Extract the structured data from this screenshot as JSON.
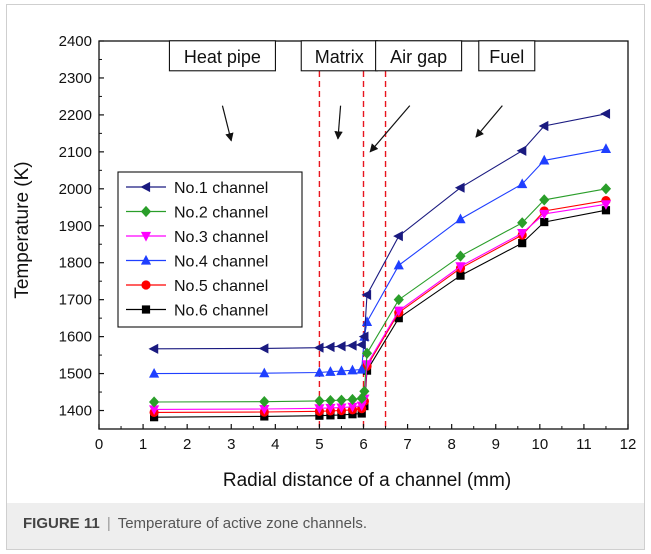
{
  "figure": {
    "caption_label": "FIGURE 11",
    "caption_separator": "|",
    "caption_text": "Temperature of active zone channels."
  },
  "chart_data": {
    "type": "line",
    "xlabel": "Radial distance of a channel (mm)",
    "ylabel": "Temperature (K)",
    "xlim": [
      0,
      12
    ],
    "ylim": [
      1350,
      2400
    ],
    "xticks": [
      0,
      1,
      2,
      3,
      4,
      5,
      6,
      7,
      8,
      9,
      10,
      11,
      12
    ],
    "yticks": [
      1400,
      1500,
      1600,
      1700,
      1800,
      1900,
      2000,
      2100,
      2200,
      2300,
      2400
    ],
    "grid": false,
    "legend_position": "left",
    "boundaries": [
      5.0,
      6.0,
      6.5
    ],
    "boundary_color": "#e8141e",
    "zone_annotations": [
      {
        "label": "Heat pipe",
        "box_x": 2.8,
        "box_y": 2360,
        "arrow_from": [
          2.8,
          2225
        ],
        "arrow_to": [
          3.0,
          2130
        ]
      },
      {
        "label": "Matrix",
        "box_x": 5.45,
        "box_y": 2360,
        "arrow_from": [
          5.48,
          2225
        ],
        "arrow_to": [
          5.42,
          2135
        ]
      },
      {
        "label": "Air gap",
        "box_x": 7.25,
        "box_y": 2360,
        "arrow_from": [
          7.05,
          2225
        ],
        "arrow_to": [
          6.15,
          2100
        ]
      },
      {
        "label": "Fuel",
        "box_x": 9.25,
        "box_y": 2360,
        "arrow_from": [
          9.15,
          2225
        ],
        "arrow_to": [
          8.55,
          2140
        ]
      }
    ],
    "x": [
      1.25,
      3.75,
      5.0,
      5.25,
      5.5,
      5.75,
      5.96,
      6.02,
      6.08,
      6.8,
      8.2,
      9.6,
      10.1,
      11.5
    ],
    "series": [
      {
        "name": "No.6 channel",
        "color": "#000000",
        "marker": "square",
        "values": [
          1382,
          1384,
          1386,
          1387,
          1388,
          1390,
          1392,
          1412,
          1508,
          1650,
          1765,
          1853,
          1910,
          1942
        ]
      },
      {
        "name": "No.5 channel",
        "color": "#ff0000",
        "marker": "circle",
        "values": [
          1395,
          1396,
          1398,
          1399,
          1400,
          1402,
          1405,
          1425,
          1520,
          1665,
          1785,
          1875,
          1940,
          1968
        ]
      },
      {
        "name": "No.4 channel",
        "color": "#1f3fff",
        "marker": "triangle-up",
        "values": [
          1500,
          1501,
          1503,
          1505,
          1507,
          1509,
          1511,
          1600,
          1640,
          1793,
          1918,
          2013,
          2077,
          2108
        ]
      },
      {
        "name": "No.3 channel",
        "color": "#ff00ff",
        "marker": "triangle-down",
        "values": [
          1403,
          1404,
          1406,
          1407,
          1408,
          1410,
          1413,
          1432,
          1525,
          1670,
          1790,
          1880,
          1932,
          1958
        ]
      },
      {
        "name": "No.2 channel",
        "color": "#2a9e2a",
        "marker": "diamond",
        "values": [
          1423,
          1424,
          1426,
          1427,
          1428,
          1430,
          1433,
          1452,
          1555,
          1700,
          1818,
          1908,
          1970,
          2000
        ]
      },
      {
        "name": "No.1 channel",
        "color": "#1a1a80",
        "marker": "triangle-left",
        "values": [
          1567,
          1568,
          1570,
          1572,
          1574,
          1576,
          1578,
          1600,
          1713,
          1872,
          2003,
          2103,
          2170,
          2203
        ]
      }
    ]
  }
}
